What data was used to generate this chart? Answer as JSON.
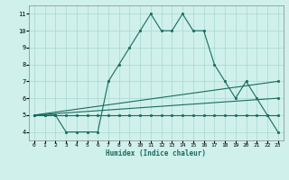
{
  "bg_color": "#cff0eb",
  "grid_color": "#a8d8d0",
  "line_color": "#1a6b60",
  "marker_color": "#1a6b60",
  "xlabel": "Humidex (Indice chaleur)",
  "xlim": [
    -0.5,
    23.5
  ],
  "ylim": [
    3.5,
    11.5
  ],
  "xticks": [
    0,
    1,
    2,
    3,
    4,
    5,
    6,
    7,
    8,
    9,
    10,
    11,
    12,
    13,
    14,
    15,
    16,
    17,
    18,
    19,
    20,
    21,
    22,
    23
  ],
  "yticks": [
    4,
    5,
    6,
    7,
    8,
    9,
    10,
    11
  ],
  "series1_x": [
    0,
    1,
    2,
    3,
    4,
    5,
    6,
    7,
    8,
    9,
    10,
    11,
    12,
    13,
    14,
    15,
    16,
    17,
    18,
    19,
    20,
    21,
    22,
    23
  ],
  "series1_y": [
    5,
    5,
    5,
    4,
    4,
    4,
    4,
    7,
    8,
    9,
    10,
    11,
    10,
    10,
    11,
    10,
    10,
    8,
    7,
    6,
    7,
    6,
    5,
    4
  ],
  "series2_x": [
    0,
    1,
    2,
    3,
    4,
    5,
    6,
    7,
    8,
    9,
    10,
    11,
    12,
    13,
    14,
    15,
    16,
    17,
    18,
    19,
    20,
    21,
    22,
    23
  ],
  "series2_y": [
    5,
    5,
    5,
    5,
    5,
    5,
    5,
    5,
    5,
    5,
    5,
    5,
    5,
    5,
    5,
    5,
    5,
    5,
    5,
    5,
    5,
    5,
    5,
    5
  ],
  "series3_x": [
    0,
    23
  ],
  "series3_y": [
    5.0,
    6.0
  ],
  "series4_x": [
    0,
    23
  ],
  "series4_y": [
    5.0,
    7.0
  ]
}
